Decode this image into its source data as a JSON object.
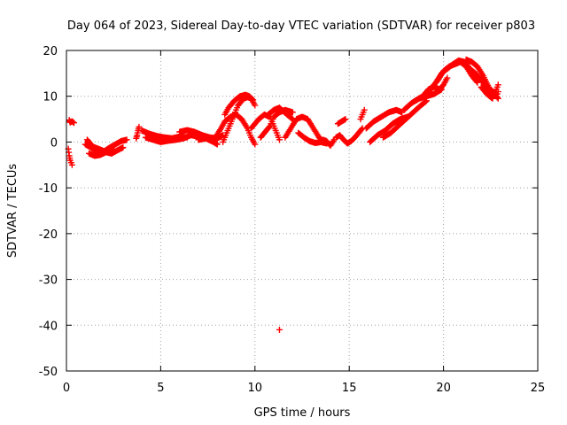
{
  "chart_data": {
    "type": "scatter",
    "title": "Day 064 of 2023, Sidereal Day-to-day VTEC variation (SDTVAR) for receiver p803",
    "xlabel": "GPS time / hours",
    "ylabel": "SDTVAR / TECUs",
    "xlim": [
      0,
      25
    ],
    "ylim": [
      -50,
      20
    ],
    "xticks": [
      0,
      5,
      10,
      15,
      20,
      25
    ],
    "yticks": [
      -50,
      -40,
      -30,
      -20,
      -10,
      0,
      10,
      20
    ],
    "grid": true,
    "marker": "+",
    "color": "#ff0000",
    "series": [
      {
        "name": "SDTVAR",
        "segments": [
          [
            [
              0.15,
              4.8
            ],
            [
              0.2,
              4.3
            ],
            [
              0.3,
              4.5
            ],
            [
              0.4,
              4.2
            ]
          ],
          [
            [
              0.1,
              -1.5
            ],
            [
              0.15,
              -3.0
            ],
            [
              0.2,
              -4.0
            ],
            [
              0.3,
              -5.0
            ]
          ],
          [
            [
              1.0,
              -0.5
            ],
            [
              1.3,
              -1.2
            ],
            [
              1.6,
              -2.0
            ],
            [
              1.9,
              -2.5
            ],
            [
              2.2,
              -1.8
            ],
            [
              2.5,
              -1.5
            ]
          ],
          [
            [
              1.1,
              0.5
            ],
            [
              1.4,
              -1.0
            ],
            [
              1.7,
              -1.5
            ],
            [
              2.0,
              -2.0
            ],
            [
              2.3,
              -1.2
            ],
            [
              2.6,
              -0.5
            ],
            [
              2.9,
              0.2
            ],
            [
              3.2,
              0.5
            ]
          ],
          [
            [
              1.2,
              -2.5
            ],
            [
              1.5,
              -3.0
            ],
            [
              1.8,
              -2.8
            ],
            [
              2.1,
              -2.2
            ],
            [
              2.4,
              -2.5
            ],
            [
              2.7,
              -1.8
            ],
            [
              3.0,
              -1.2
            ]
          ],
          [
            [
              3.7,
              0.8
            ],
            [
              3.75,
              1.5
            ],
            [
              3.8,
              2.5
            ],
            [
              3.85,
              3.3
            ]
          ],
          [
            [
              4.0,
              2.5
            ],
            [
              4.4,
              1.8
            ],
            [
              4.8,
              1.3
            ],
            [
              5.2,
              1.0
            ],
            [
              5.6,
              0.8
            ],
            [
              6.0,
              1.2
            ],
            [
              6.4,
              1.0
            ]
          ],
          [
            [
              4.2,
              1.0
            ],
            [
              4.6,
              0.5
            ],
            [
              5.0,
              0.0
            ],
            [
              5.4,
              0.3
            ],
            [
              5.8,
              0.5
            ],
            [
              6.2,
              0.8
            ],
            [
              6.6,
              1.5
            ],
            [
              7.0,
              1.2
            ]
          ],
          [
            [
              6.0,
              2.2
            ],
            [
              6.4,
              2.6
            ],
            [
              6.8,
              2.2
            ],
            [
              7.2,
              1.5
            ],
            [
              7.6,
              1.0
            ],
            [
              8.0,
              0.8
            ],
            [
              8.3,
              1.5
            ]
          ],
          [
            [
              7.0,
              0.5
            ],
            [
              7.4,
              0.8
            ],
            [
              7.8,
              0.0
            ],
            [
              8.0,
              -0.5
            ]
          ],
          [
            [
              7.9,
              1.0
            ],
            [
              8.2,
              3.0
            ],
            [
              8.4,
              4.5
            ],
            [
              8.7,
              5.5
            ],
            [
              9.0,
              6.0
            ],
            [
              9.3,
              5.0
            ],
            [
              9.6,
              3.0
            ],
            [
              9.8,
              1.0
            ],
            [
              10.0,
              -0.5
            ]
          ],
          [
            [
              8.3,
              0.0
            ],
            [
              8.5,
              2.0
            ],
            [
              8.8,
              5.0
            ],
            [
              9.1,
              8.0
            ],
            [
              9.4,
              9.5
            ],
            [
              9.6,
              9.8
            ],
            [
              9.8,
              9.5
            ],
            [
              10.0,
              8.0
            ]
          ],
          [
            [
              8.4,
              6.0
            ],
            [
              8.6,
              7.5
            ],
            [
              8.9,
              9.0
            ],
            [
              9.2,
              10.0
            ],
            [
              9.5,
              10.3
            ],
            [
              9.7,
              10.0
            ],
            [
              9.9,
              9.2
            ]
          ],
          [
            [
              9.8,
              3.0
            ],
            [
              10.2,
              5.0
            ],
            [
              10.5,
              6.0
            ],
            [
              10.8,
              5.5
            ],
            [
              11.0,
              3.5
            ],
            [
              11.3,
              0.5
            ]
          ],
          [
            [
              10.3,
              1.0
            ],
            [
              10.5,
              2.0
            ],
            [
              10.8,
              3.5
            ],
            [
              11.0,
              5.5
            ],
            [
              11.3,
              6.5
            ],
            [
              11.6,
              7.0
            ],
            [
              12.0,
              6.5
            ]
          ],
          [
            [
              10.7,
              6.0
            ],
            [
              11.0,
              7.0
            ],
            [
              11.3,
              7.5
            ],
            [
              11.7,
              6.0
            ],
            [
              12.0,
              5.0
            ]
          ],
          [
            [
              11.6,
              1.0
            ],
            [
              11.9,
              3.0
            ],
            [
              12.2,
              5.0
            ],
            [
              12.5,
              5.5
            ],
            [
              12.8,
              5.0
            ],
            [
              13.1,
              3.0
            ],
            [
              13.4,
              1.0
            ],
            [
              13.7,
              -0.2
            ]
          ],
          [
            [
              12.3,
              2.0
            ],
            [
              12.6,
              1.0
            ],
            [
              12.9,
              0.2
            ],
            [
              13.2,
              -0.2
            ],
            [
              13.5,
              0.0
            ],
            [
              13.8,
              -0.3
            ]
          ],
          [
            [
              13.6,
              0.5
            ],
            [
              13.8,
              0.2
            ],
            [
              14.0,
              -0.8
            ],
            [
              14.2,
              0.5
            ]
          ],
          [
            [
              14.3,
              1.0
            ],
            [
              14.5,
              1.5
            ],
            [
              14.7,
              0.5
            ],
            [
              14.9,
              -0.3
            ],
            [
              15.1,
              0.2
            ],
            [
              15.3,
              1.0
            ],
            [
              15.5,
              2.0
            ],
            [
              15.7,
              3.0
            ]
          ],
          [
            [
              14.4,
              4.0
            ],
            [
              14.6,
              4.5
            ],
            [
              14.8,
              5.0
            ]
          ],
          [
            [
              15.6,
              5.0
            ],
            [
              15.7,
              6.0
            ],
            [
              15.8,
              7.0
            ]
          ],
          [
            [
              15.9,
              3.0
            ],
            [
              16.3,
              4.5
            ],
            [
              16.7,
              5.5
            ],
            [
              17.1,
              6.5
            ],
            [
              17.5,
              7.0
            ],
            [
              17.8,
              6.5
            ]
          ],
          [
            [
              16.1,
              0.0
            ],
            [
              16.5,
              1.5
            ],
            [
              16.9,
              2.5
            ],
            [
              17.3,
              4.0
            ],
            [
              17.7,
              5.0
            ],
            [
              18.1,
              5.5
            ]
          ],
          [
            [
              16.8,
              1.0
            ],
            [
              17.2,
              2.0
            ],
            [
              17.6,
              3.5
            ],
            [
              18.0,
              5.0
            ],
            [
              18.4,
              6.5
            ],
            [
              18.8,
              8.0
            ],
            [
              19.1,
              9.0
            ]
          ],
          [
            [
              17.9,
              7.0
            ],
            [
              18.3,
              8.5
            ],
            [
              18.7,
              9.5
            ],
            [
              19.1,
              10.0
            ],
            [
              19.5,
              10.5
            ],
            [
              19.9,
              11.5
            ]
          ],
          [
            [
              18.5,
              9.0
            ],
            [
              18.9,
              10.0
            ],
            [
              19.2,
              11.5
            ],
            [
              19.5,
              12.0
            ],
            [
              19.8,
              11.5
            ],
            [
              20.0,
              12.5
            ],
            [
              20.2,
              14.0
            ]
          ],
          [
            [
              19.0,
              10.0
            ],
            [
              19.4,
              12.0
            ],
            [
              19.7,
              13.5
            ],
            [
              20.0,
              15.5
            ],
            [
              20.3,
              16.5
            ],
            [
              20.6,
              17.0
            ],
            [
              20.9,
              17.5
            ],
            [
              21.2,
              16.5
            ],
            [
              21.5,
              14.5
            ],
            [
              21.8,
              13.0
            ]
          ],
          [
            [
              19.3,
              11.5
            ],
            [
              19.6,
              13.0
            ],
            [
              19.9,
              15.0
            ],
            [
              20.2,
              16.0
            ],
            [
              20.5,
              17.0
            ],
            [
              20.8,
              17.8
            ],
            [
              21.1,
              17.5
            ],
            [
              21.4,
              16.0
            ],
            [
              21.7,
              15.0
            ],
            [
              22.0,
              13.5
            ]
          ],
          [
            [
              21.2,
              18.0
            ],
            [
              21.5,
              17.5
            ],
            [
              21.8,
              16.5
            ],
            [
              22.1,
              14.5
            ],
            [
              22.4,
              12.0
            ],
            [
              22.7,
              10.5
            ],
            [
              22.9,
              9.5
            ]
          ],
          [
            [
              21.6,
              15.0
            ],
            [
              21.9,
              14.0
            ],
            [
              22.2,
              12.5
            ],
            [
              22.5,
              11.0
            ],
            [
              22.8,
              10.0
            ],
            [
              22.9,
              11.0
            ]
          ],
          [
            [
              22.0,
              12.0
            ],
            [
              22.3,
              10.5
            ],
            [
              22.6,
              9.5
            ],
            [
              22.9,
              12.5
            ]
          ]
        ],
        "outliers": [
          [
            11.3,
            -41.0
          ]
        ]
      }
    ]
  }
}
